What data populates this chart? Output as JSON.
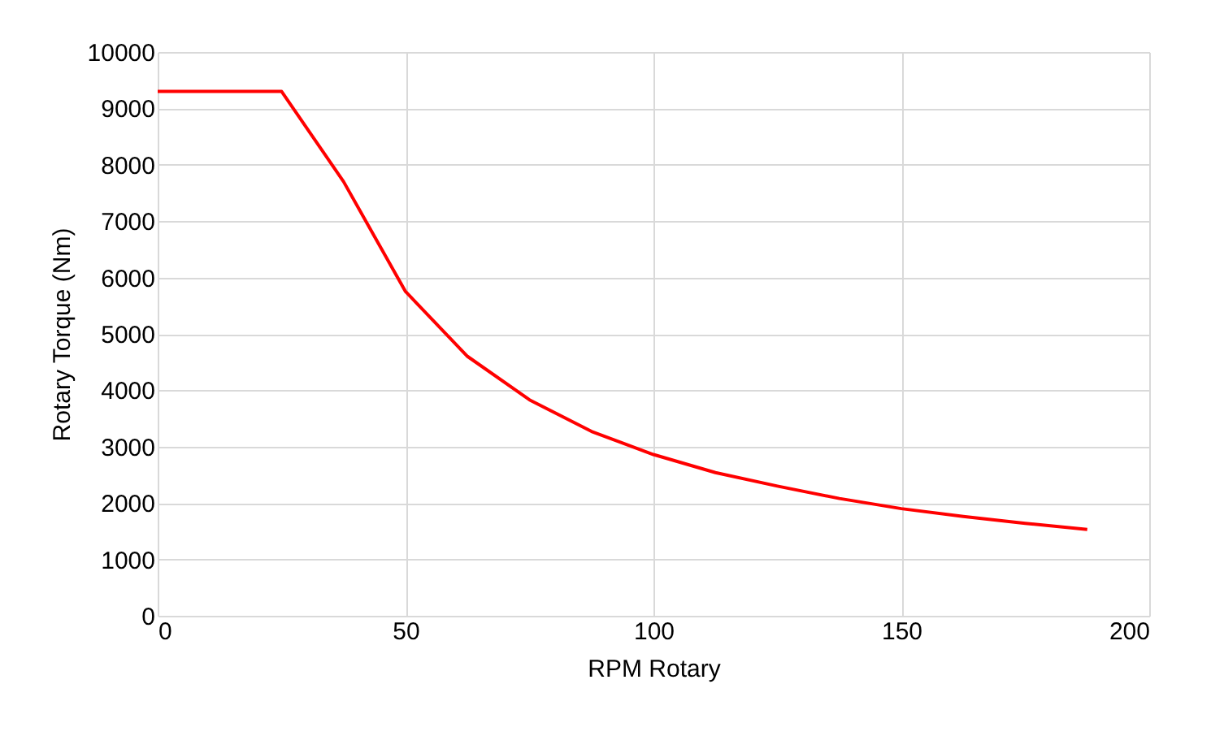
{
  "chart_data": {
    "type": "line",
    "xlabel": "RPM Rotary",
    "ylabel": "Rotary Torque (Nm)",
    "x": [
      0,
      25,
      37.5,
      50,
      62.5,
      75,
      87.5,
      100,
      112.5,
      125,
      137.5,
      150,
      162.5,
      175,
      187.5
    ],
    "series": [
      {
        "color": "#ff0000",
        "values": [
          9300,
          9300,
          7700,
          5750,
          4600,
          3830,
          3270,
          2860,
          2540,
          2300,
          2080,
          1900,
          1760,
          1640,
          1530
        ]
      }
    ],
    "xlim": [
      0,
      200
    ],
    "xticks": [
      0,
      50,
      100,
      150,
      200
    ],
    "ylim": [
      0,
      10000
    ],
    "yticks": [
      0,
      1000,
      2000,
      3000,
      4000,
      5000,
      6000,
      7000,
      8000,
      9000,
      10000
    ],
    "grid": true,
    "marker": "none",
    "line_style": "solid"
  }
}
